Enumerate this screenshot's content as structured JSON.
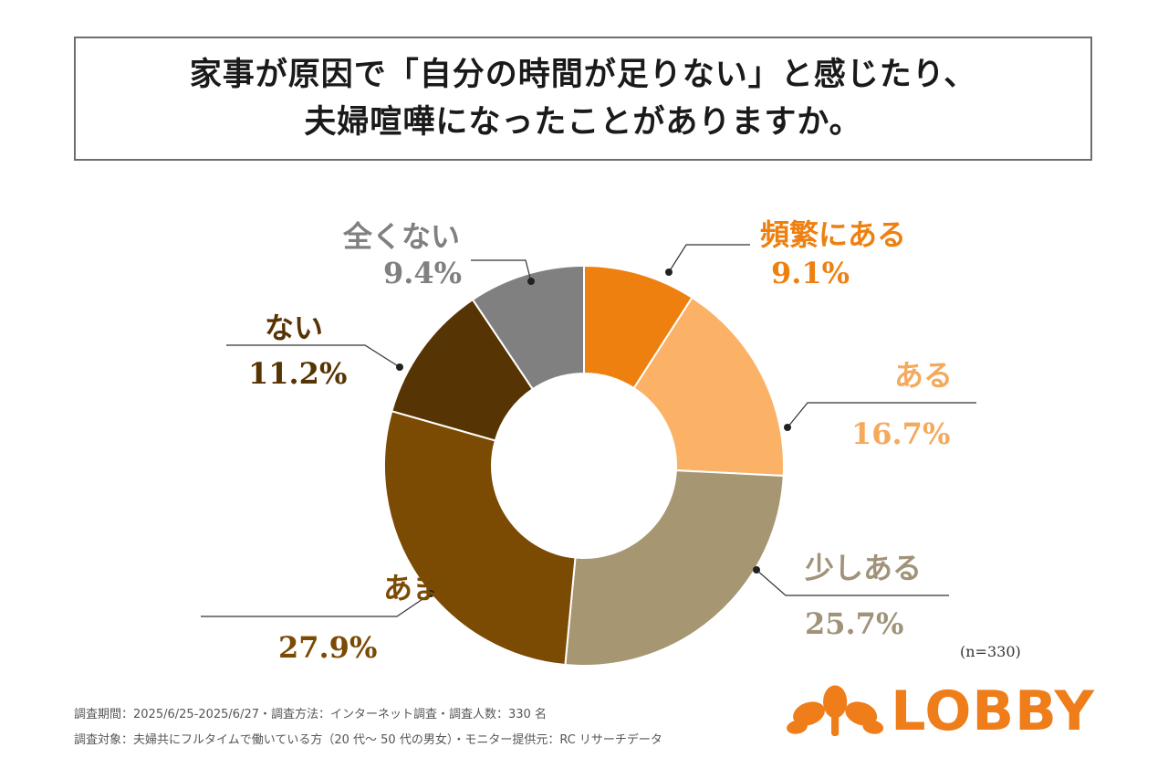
{
  "title": {
    "line1": "家事が原因で「自分の時間が足りない」と感じたり、",
    "line2": "夫婦喧嘩になったことがありますか。"
  },
  "chart_data": {
    "type": "pie",
    "style": "donut",
    "slices": [
      {
        "label": "頻繁にある",
        "value": 9.1,
        "pct_text": "9.1%",
        "color": "#ee8010",
        "text_color": "#ee8010"
      },
      {
        "label": "ある",
        "value": 16.7,
        "pct_text": "16.7%",
        "color": "#fbb266",
        "text_color": "#f5a95c"
      },
      {
        "label": "少しある",
        "value": 25.7,
        "pct_text": "25.7%",
        "color": "#a69672",
        "text_color": "#a09379"
      },
      {
        "label": "あまりない",
        "value": 27.9,
        "pct_text": "27.9%",
        "color": "#7b4a03",
        "text_color": "#7b4a03"
      },
      {
        "label": "ない",
        "value": 11.2,
        "pct_text": "11.2%",
        "color": "#573403",
        "text_color": "#573403"
      },
      {
        "label": "全くない",
        "value": 9.4,
        "pct_text": "9.4%",
        "color": "#808080",
        "text_color": "#808080"
      }
    ]
  },
  "sample_size": "(n=330)",
  "footnotes": {
    "line1": "調査期間：2025/6/25-2025/6/27・調査方法：インターネット調査・調査人数：330 名",
    "line2": "調査対象：夫婦共にフルタイムで働いている方（20 代〜 50 代の男女）・モニター提供元：RC リサーチデータ"
  },
  "logo": {
    "text": "LOBBY",
    "color": "#ee7d1a",
    "icon": "leaf-cluster-icon"
  }
}
